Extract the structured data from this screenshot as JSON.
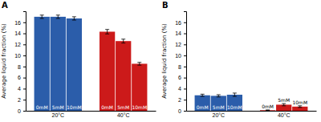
{
  "chart_data": [
    {
      "type": "bar",
      "title": "A",
      "y_label": "Average liquid fraction (%)",
      "categories": [
        "20°C",
        "40°C"
      ],
      "series": [
        {
          "name": "0mM",
          "colors": [
            "#2b5daa",
            "#cc1a1a"
          ],
          "values": [
            17.0,
            14.3
          ],
          "errors": [
            0.3,
            0.4
          ]
        },
        {
          "name": "5mM",
          "colors": [
            "#2b5daa",
            "#cc1a1a"
          ],
          "values": [
            17.0,
            12.6
          ],
          "errors": [
            0.3,
            0.35
          ]
        },
        {
          "name": "10mM",
          "colors": [
            "#2b5daa",
            "#cc1a1a"
          ],
          "values": [
            16.7,
            8.5
          ],
          "errors": [
            0.3,
            0.25
          ]
        }
      ],
      "ylim": [
        0,
        18
      ],
      "yticks": [
        0,
        2,
        4,
        6,
        8,
        10,
        12,
        14,
        16
      ]
    },
    {
      "type": "bar",
      "title": "B",
      "y_label": "Average liquid fraction (%)",
      "categories": [
        "20°C",
        "40°C"
      ],
      "series": [
        {
          "name": "0mM",
          "colors": [
            "#2b5daa",
            "#cc1a1a"
          ],
          "values": [
            2.8,
            0.1
          ],
          "errors": [
            0.2,
            0.05
          ]
        },
        {
          "name": "5mM",
          "colors": [
            "#2b5daa",
            "#cc1a1a"
          ],
          "values": [
            2.7,
            1.1
          ],
          "errors": [
            0.2,
            0.2
          ]
        },
        {
          "name": "10mM",
          "colors": [
            "#2b5daa",
            "#cc1a1a"
          ],
          "values": [
            2.9,
            0.75
          ],
          "errors": [
            0.3,
            0.15
          ]
        }
      ],
      "ylim": [
        0,
        18
      ],
      "yticks": [
        0,
        2,
        4,
        6,
        8,
        10,
        12,
        14,
        16
      ]
    }
  ]
}
